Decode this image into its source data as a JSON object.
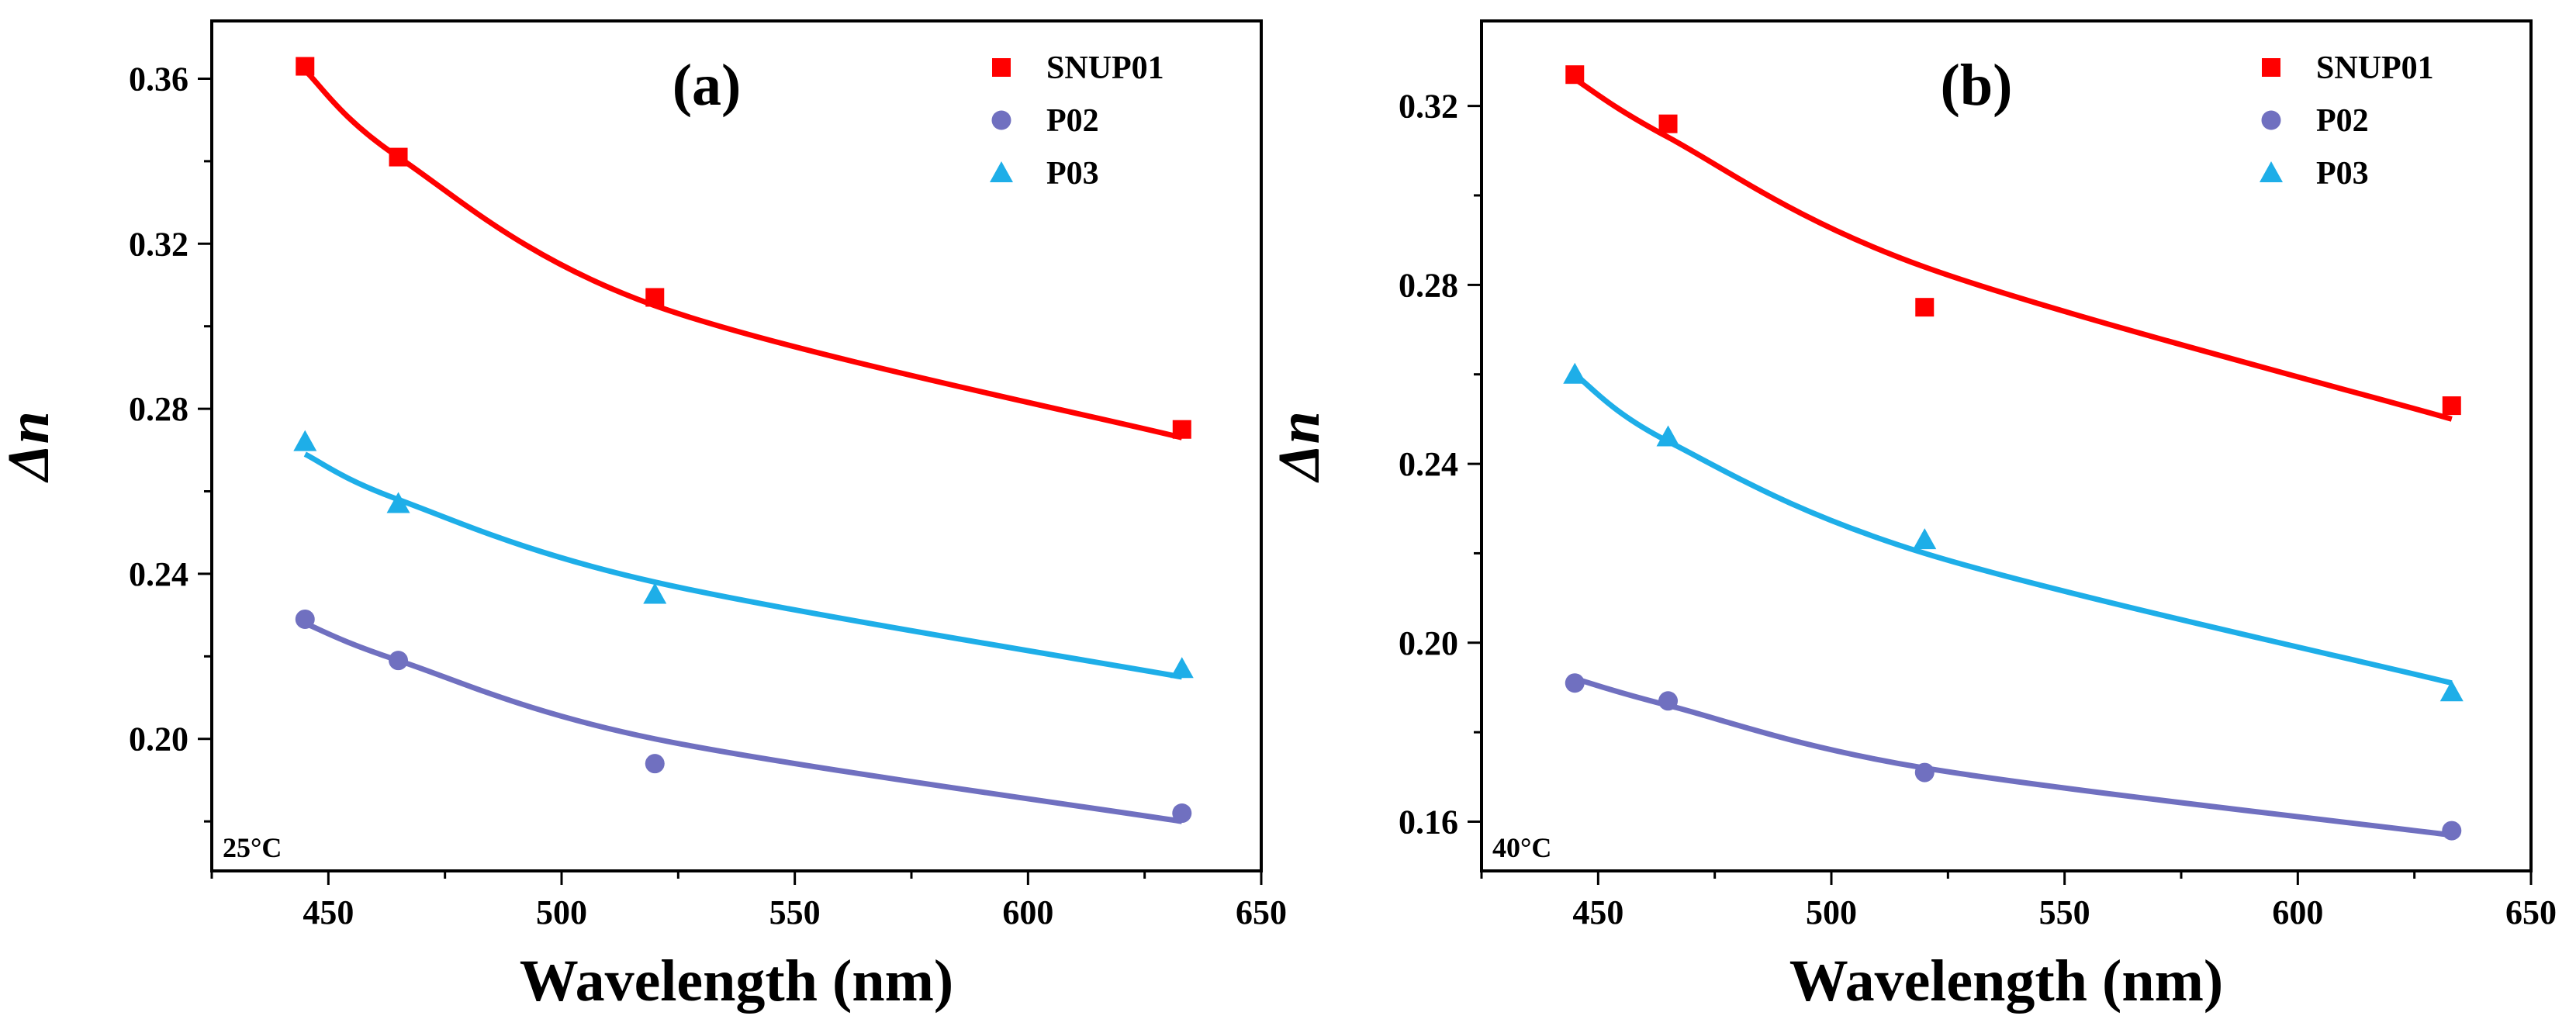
{
  "chart_data": [
    {
      "type": "scatter",
      "panel_label": "(a)",
      "temperature_label": "25°C",
      "xlabel": "Wavelength (nm)",
      "ylabel": "Δn",
      "xlim": [
        425,
        650
      ],
      "ylim": [
        0.168,
        0.374
      ],
      "xticks": [
        450,
        500,
        550,
        600,
        650
      ],
      "yticks": [
        0.2,
        0.24,
        0.28,
        0.32,
        0.36
      ],
      "legend_position": "top-right",
      "series": [
        {
          "name": "SNUP01",
          "marker": "square",
          "color": "#ff0000",
          "x": [
            445,
            465,
            520,
            633
          ],
          "values": [
            0.363,
            0.341,
            0.307,
            0.275
          ],
          "fit": [
            0.362,
            0.341,
            0.305,
            0.273
          ]
        },
        {
          "name": "P02",
          "marker": "circle",
          "color": "#7070c0",
          "x": [
            445,
            465,
            520,
            633
          ],
          "values": [
            0.229,
            0.219,
            0.194,
            0.182
          ],
          "fit": [
            0.228,
            0.219,
            0.2,
            0.18
          ]
        },
        {
          "name": "P03",
          "marker": "triangle",
          "color": "#1eaee8",
          "x": [
            445,
            465,
            520,
            633
          ],
          "values": [
            0.272,
            0.257,
            0.235,
            0.217
          ],
          "fit": [
            0.269,
            0.258,
            0.238,
            0.215
          ]
        }
      ]
    },
    {
      "type": "scatter",
      "panel_label": "(b)",
      "temperature_label": "40°C",
      "xlabel": "Wavelength (nm)",
      "ylabel": "Δn",
      "xlim": [
        425,
        650
      ],
      "ylim": [
        0.149,
        0.339
      ],
      "xticks": [
        450,
        500,
        550,
        600,
        650
      ],
      "yticks": [
        0.16,
        0.2,
        0.24,
        0.28,
        0.32
      ],
      "legend_position": "top-right",
      "series": [
        {
          "name": "SNUP01",
          "marker": "square",
          "color": "#ff0000",
          "x": [
            445,
            465,
            520,
            633
          ],
          "values": [
            0.327,
            0.316,
            0.275,
            0.253
          ],
          "fit": [
            0.326,
            0.313,
            0.284,
            0.25
          ]
        },
        {
          "name": "P02",
          "marker": "circle",
          "color": "#7070c0",
          "x": [
            445,
            465,
            520,
            633
          ],
          "values": [
            0.191,
            0.187,
            0.171,
            0.158
          ],
          "fit": [
            0.192,
            0.186,
            0.172,
            0.157
          ]
        },
        {
          "name": "P03",
          "marker": "triangle",
          "color": "#1eaee8",
          "x": [
            445,
            465,
            520,
            633
          ],
          "values": [
            0.26,
            0.246,
            0.223,
            0.189
          ],
          "fit": [
            0.26,
            0.245,
            0.22,
            0.191
          ]
        }
      ]
    }
  ]
}
